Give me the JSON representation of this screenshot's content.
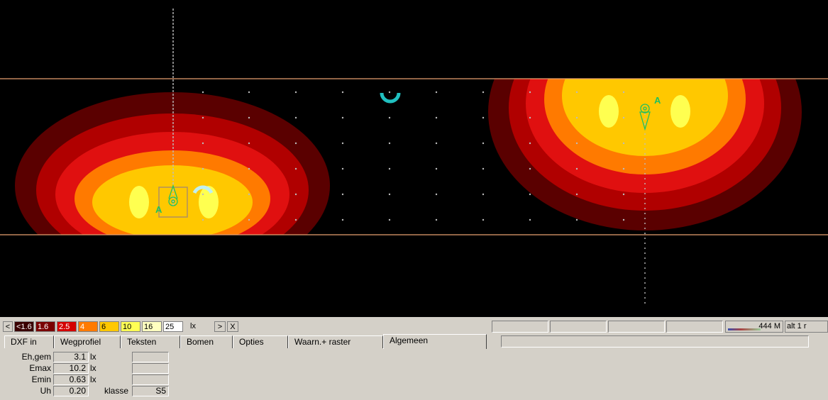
{
  "legend": {
    "prev_label": "<",
    "next_label": ">",
    "close_label": "X",
    "unit": "lx",
    "swatches": [
      {
        "label": "<1.6",
        "bg": "#3a0000",
        "fg": "#ffffff"
      },
      {
        "label": "1.6",
        "bg": "#7a0000",
        "fg": "#ffffff"
      },
      {
        "label": "2.5",
        "bg": "#d40000",
        "fg": "#ffffff"
      },
      {
        "label": "4",
        "bg": "#ff7a00",
        "fg": "#ffffff"
      },
      {
        "label": "6",
        "bg": "#ffc800",
        "fg": "#000000"
      },
      {
        "label": "10",
        "bg": "#ffff55",
        "fg": "#000000"
      },
      {
        "label": "16",
        "bg": "#ffffc0",
        "fg": "#000000"
      },
      {
        "label": "25",
        "bg": "#ffffff",
        "fg": "#000000"
      }
    ]
  },
  "status": {
    "memory": "444 M",
    "alt": "alt 1  r"
  },
  "tabs": [
    {
      "label": "DXF in"
    },
    {
      "label": "Wegprofiel"
    },
    {
      "label": "Teksten"
    },
    {
      "label": "Bomen"
    },
    {
      "label": "Opties"
    },
    {
      "label": "Waarn.+ raster"
    },
    {
      "label": "Algemeen",
      "active": true
    }
  ],
  "results": {
    "eh_label": "Eh,gem",
    "eh_value": "3.1",
    "emax_label": "Emax",
    "emax_value": "10.2",
    "emin_label": "Emin",
    "emin_value": "0.63",
    "uh_label": "Uh",
    "uh_value": "0.20",
    "unit": "lx",
    "klasse_label": "klasse",
    "klasse_value": "S5"
  },
  "plan": {
    "luminaire_label_left": "A",
    "luminaire_label_right": "A",
    "colors": {
      "road_edge": "#e8a070",
      "ring1": "#5a0000",
      "ring2": "#b00000",
      "ring3": "#e01010",
      "ring4": "#ff7a00",
      "ring5": "#ffc800",
      "ring6": "#ffff50",
      "luminaire": "#20c060",
      "grid_point": "#bbbbbb",
      "marker": "#20c0c0"
    }
  }
}
